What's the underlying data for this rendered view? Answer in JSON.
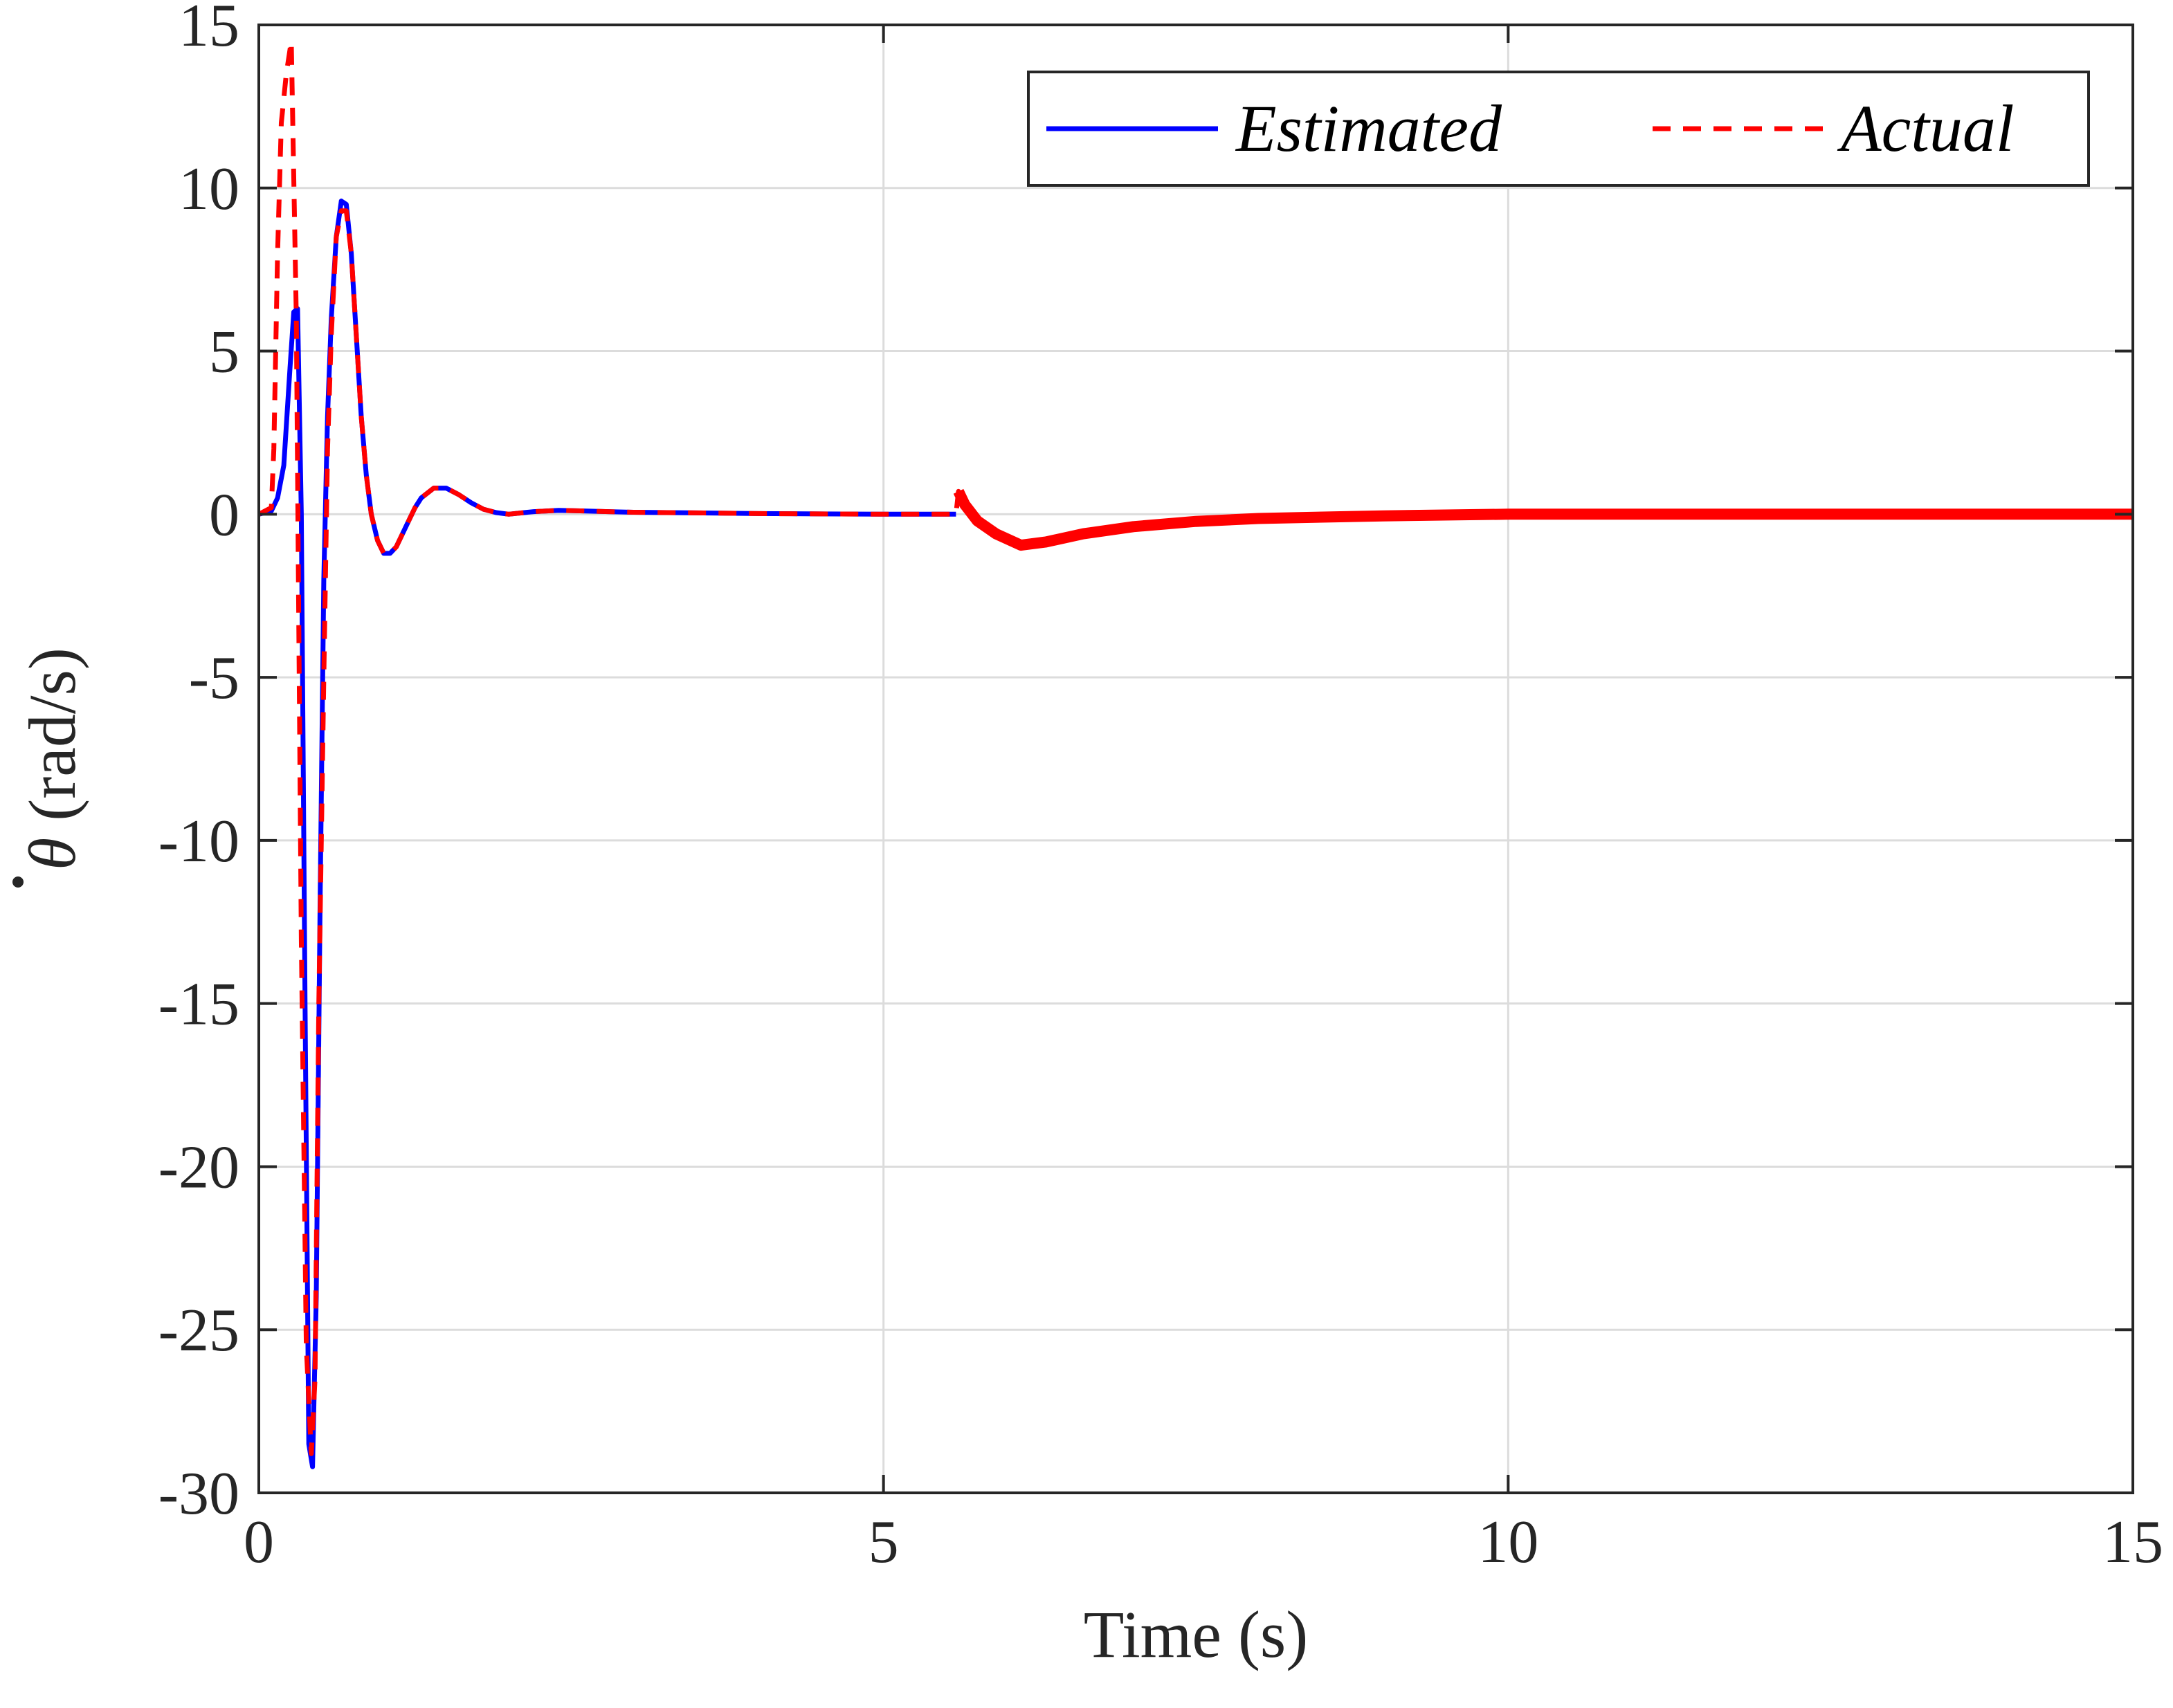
{
  "chart_data": {
    "type": "line",
    "xlabel": "Time (s)",
    "ylabel_symbol": "θ",
    "ylabel_unit": " (rad/s)",
    "xlim": [
      0,
      15
    ],
    "ylim": [
      -30,
      15
    ],
    "xticks": [
      0,
      5,
      10,
      15
    ],
    "yticks": [
      -30,
      -25,
      -20,
      -15,
      -10,
      -5,
      0,
      5,
      10,
      15
    ],
    "xtick_labels": [
      "0",
      "5",
      "10",
      "15"
    ],
    "ytick_labels": [
      "-30",
      "-25",
      "-20",
      "-15",
      "-10",
      "-5",
      "0",
      "5",
      "10",
      "15"
    ],
    "grid": true,
    "legend_position": "top-right",
    "series": [
      {
        "name": "Estimated",
        "color": "#0000ff",
        "style": "solid",
        "x": [
          0,
          0.1,
          0.15,
          0.2,
          0.25,
          0.28,
          0.31,
          0.34,
          0.37,
          0.4,
          0.43,
          0.46,
          0.49,
          0.52,
          0.55,
          0.58,
          0.62,
          0.66,
          0.7,
          0.74,
          0.78,
          0.82,
          0.86,
          0.9,
          0.95,
          1.0,
          1.05,
          1.1,
          1.15,
          1.2,
          1.25,
          1.3,
          1.4,
          1.5,
          1.6,
          1.7,
          1.8,
          1.9,
          2.0,
          2.2,
          2.4,
          2.6,
          2.8,
          3.0,
          3.5,
          4.0,
          4.5,
          5.0,
          5.58
        ],
        "y": [
          0,
          0.1,
          0.5,
          1.5,
          4.5,
          6.2,
          6.3,
          0,
          -15,
          -28.5,
          -29.2,
          -24,
          -12,
          -2,
          3,
          6,
          8.5,
          9.6,
          9.5,
          8,
          5.5,
          3,
          1.2,
          0,
          -0.8,
          -1.2,
          -1.2,
          -1.0,
          -0.6,
          -0.2,
          0.2,
          0.5,
          0.8,
          0.8,
          0.6,
          0.35,
          0.15,
          0.05,
          0.0,
          0.08,
          0.12,
          0.1,
          0.08,
          0.06,
          0.04,
          0.02,
          0.01,
          0.0,
          0.0
        ]
      },
      {
        "name": "Actual",
        "color": "#ff0000",
        "style": "dashed",
        "x": [
          0,
          0.1,
          0.12,
          0.15,
          0.18,
          0.22,
          0.26,
          0.3,
          0.34,
          0.38,
          0.42,
          0.45,
          0.48,
          0.52,
          0.55,
          0.58,
          0.62,
          0.66,
          0.7,
          0.74,
          0.78,
          0.82,
          0.86,
          0.9,
          0.95,
          1.0,
          1.05,
          1.1,
          1.15,
          1.2,
          1.25,
          1.3,
          1.4,
          1.5,
          1.6,
          1.7,
          1.8,
          1.9,
          2.0,
          2.2,
          2.4,
          2.6,
          2.8,
          3.0,
          3.5,
          4.0,
          4.5,
          5.0,
          5.58,
          5.6,
          5.65,
          5.75,
          5.9,
          6.1,
          6.3,
          6.6,
          7.0,
          7.5,
          8.0,
          9.0,
          10.0,
          12.0,
          15.0
        ],
        "y": [
          0,
          0.2,
          2.0,
          8.0,
          12.0,
          13.5,
          14.5,
          6.0,
          -13.0,
          -25.5,
          -28.8,
          -26.5,
          -15.0,
          -5.0,
          2.0,
          5.5,
          8.5,
          9.3,
          9.3,
          8.0,
          5.5,
          3.0,
          1.2,
          0,
          -0.8,
          -1.2,
          -1.2,
          -1.0,
          -0.6,
          -0.2,
          0.2,
          0.5,
          0.8,
          0.8,
          0.6,
          0.35,
          0.15,
          0.05,
          0.0,
          0.08,
          0.12,
          0.1,
          0.08,
          0.06,
          0.04,
          0.02,
          0.01,
          0.0,
          0.0,
          0.7,
          0.3,
          -0.2,
          -0.6,
          -0.95,
          -0.85,
          -0.6,
          -0.38,
          -0.22,
          -0.13,
          -0.05,
          0.0,
          0.0,
          0.0
        ]
      }
    ]
  }
}
